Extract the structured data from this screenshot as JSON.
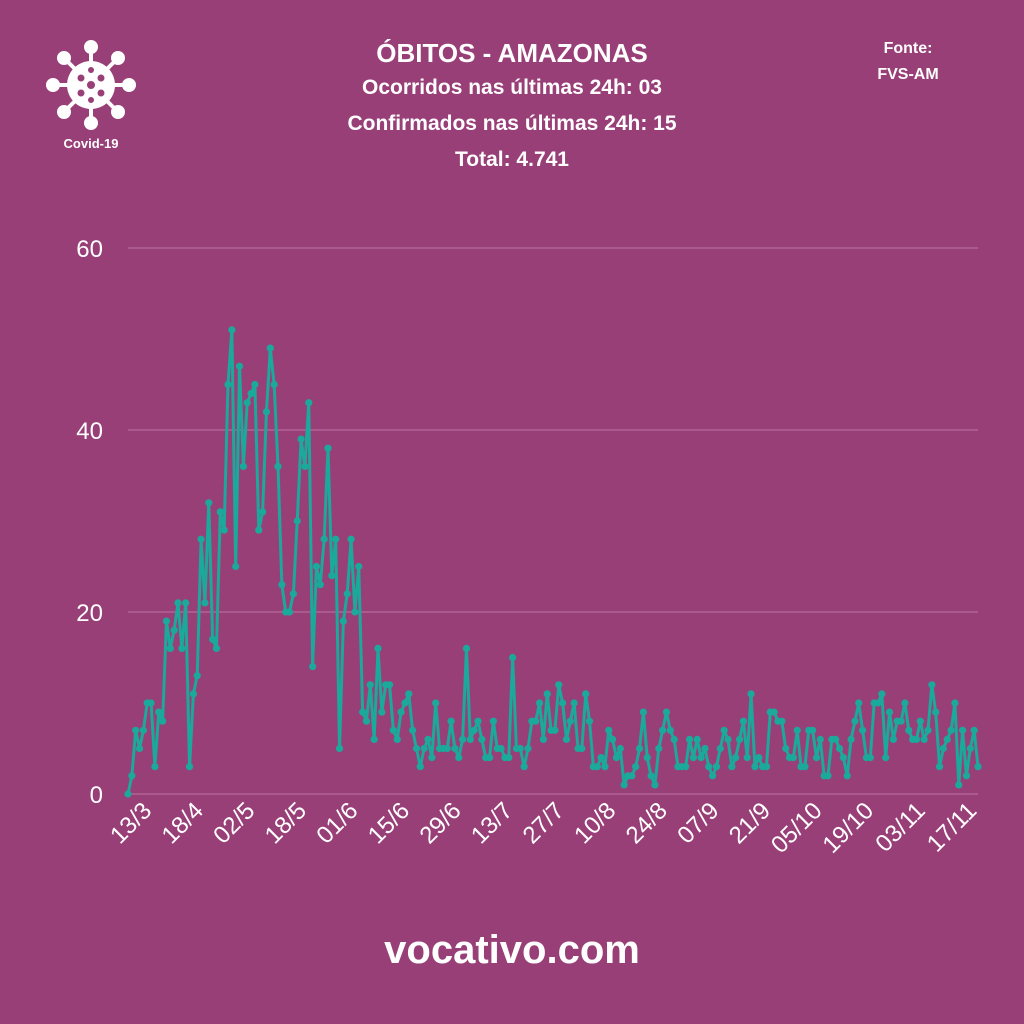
{
  "logo": {
    "label": "Covid-19",
    "icon": "virus-icon"
  },
  "header": {
    "title": "ÓBITOS - AMAZONAS",
    "line1": "Ocorridos nas últimas 24h: 03",
    "line2": "Confirmados nas últimas 24h: 15",
    "line3": "Total: 4.741"
  },
  "source": {
    "label": "Fonte:",
    "value": "FVS-AM"
  },
  "footer": {
    "site": "vocativo.com"
  },
  "colors": {
    "background": "#993f78",
    "line": "#1aa99b",
    "grid": "#b56a99",
    "text": "#ffffff"
  },
  "chart_data": {
    "type": "line",
    "title": "ÓBITOS - AMAZONAS",
    "xlabel": "",
    "ylabel": "",
    "ylim": [
      0,
      60
    ],
    "yticks": [
      0,
      20,
      40,
      60
    ],
    "grid": true,
    "xtick_labels": [
      "13/3",
      "18/4",
      "02/5",
      "18/5",
      "01/6",
      "15/6",
      "29/6",
      "13/7",
      "27/7",
      "10/8",
      "24/8",
      "07/9",
      "21/9",
      "05/10",
      "19/10",
      "03/11",
      "17/11"
    ],
    "series": [
      {
        "values": [
          0,
          2,
          7,
          5,
          7,
          10,
          10,
          3,
          9,
          8,
          19,
          16,
          18,
          21,
          16,
          21,
          3,
          11,
          13,
          28,
          21,
          32,
          17,
          16,
          31,
          29,
          45,
          51,
          25,
          47,
          36,
          43,
          44,
          45,
          29,
          31,
          42,
          49,
          45,
          36,
          23,
          20,
          20,
          22,
          30,
          39,
          36,
          43,
          14,
          25,
          23,
          28,
          38,
          24,
          28,
          5,
          19,
          22,
          28,
          20,
          25,
          9,
          8,
          12,
          6,
          16,
          9,
          12,
          12,
          7,
          6,
          9,
          10,
          11,
          7,
          5,
          3,
          5,
          6,
          4,
          10,
          5,
          5,
          5,
          8,
          5,
          4,
          6,
          16,
          6,
          7,
          8,
          6,
          4,
          4,
          8,
          5,
          5,
          4,
          4,
          15,
          5,
          5,
          3,
          5,
          8,
          8,
          10,
          6,
          11,
          7,
          7,
          12,
          10,
          6,
          8,
          10,
          5,
          5,
          11,
          8,
          3,
          3,
          4,
          3,
          7,
          6,
          4,
          5,
          1,
          2,
          2,
          3,
          5,
          9,
          4,
          2,
          1,
          5,
          7,
          9,
          7,
          6,
          3,
          3,
          3,
          6,
          4,
          6,
          4,
          5,
          3,
          2,
          3,
          5,
          7,
          6,
          3,
          4,
          6,
          8,
          4,
          11,
          3,
          4,
          3,
          3,
          9,
          9,
          8,
          8,
          5,
          4,
          4,
          7,
          3,
          3,
          7,
          7,
          4,
          6,
          2,
          2,
          6,
          6,
          5,
          4,
          2,
          6,
          8,
          10,
          7,
          4,
          4,
          10,
          10,
          11,
          4,
          9,
          6,
          8,
          8,
          10,
          7,
          6,
          6,
          8,
          6,
          7,
          12,
          9,
          3,
          5,
          6,
          7,
          10,
          1,
          7,
          2,
          5,
          7,
          3
        ]
      }
    ]
  }
}
